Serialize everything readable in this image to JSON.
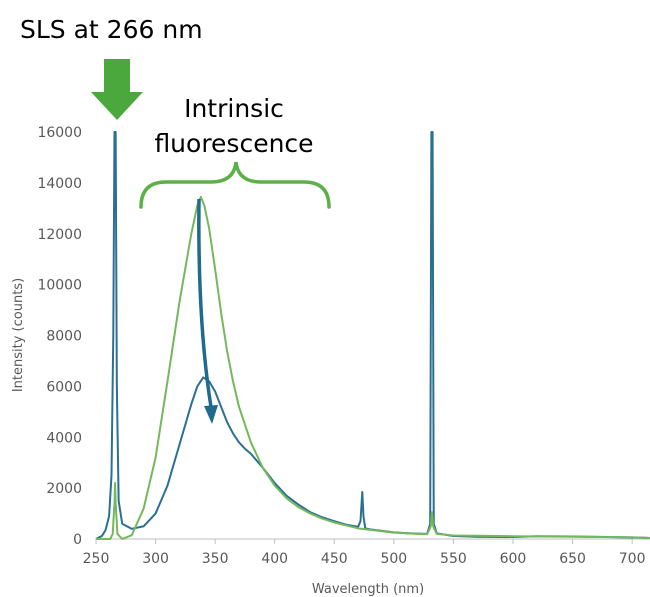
{
  "annotations": {
    "excitation": "SLS at 266 nm",
    "intrinsic_line1": "Intrinsic",
    "intrinsic_line2": "fluorescence"
  },
  "colors": {
    "series_blue": "#2b6f93",
    "series_green": "#74b85c",
    "arrow_green": "#4aa83c",
    "arrow_blue": "#1f6a8e",
    "bracket": "#5cb048",
    "axis": "#bfbfbf",
    "text": "#595959"
  },
  "chart_data": {
    "type": "line",
    "title": "",
    "xlabel": "Wavelength (nm)",
    "ylabel": "Intensity (counts)",
    "xlim": [
      250,
      715
    ],
    "ylim": [
      0,
      16000
    ],
    "xticks": [
      250,
      300,
      350,
      400,
      450,
      500,
      550,
      600,
      650,
      700
    ],
    "yticks": [
      0,
      2000,
      4000,
      6000,
      8000,
      10000,
      12000,
      14000,
      16000
    ],
    "grid": false,
    "legend": "none",
    "series": [
      {
        "color": "#2b6f93",
        "x": [
          250,
          255,
          258,
          261,
          263,
          264.5,
          265.5,
          266,
          266.5,
          267.5,
          269,
          272,
          280,
          290,
          300,
          310,
          320,
          330,
          335,
          340,
          345,
          350,
          355,
          360,
          365,
          370,
          375,
          380,
          390,
          400,
          410,
          420,
          430,
          440,
          450,
          460,
          470,
          472,
          473.5,
          474.5,
          476,
          480,
          490,
          500,
          510,
          520,
          528,
          530.5,
          531.5,
          532,
          532.5,
          533.5,
          536,
          550,
          570,
          600,
          620,
          650,
          680,
          700,
          710,
          715
        ],
        "y": [
          0,
          120,
          350,
          900,
          2500,
          8000,
          16000,
          16000,
          16000,
          6000,
          1500,
          600,
          400,
          500,
          1000,
          2100,
          3700,
          5300,
          6000,
          6350,
          6200,
          5800,
          5200,
          4600,
          4150,
          3800,
          3550,
          3350,
          2800,
          2200,
          1700,
          1350,
          1050,
          850,
          700,
          560,
          480,
          700,
          1850,
          900,
          420,
          380,
          320,
          260,
          230,
          210,
          200,
          600,
          16000,
          16000,
          16000,
          600,
          220,
          120,
          90,
          80,
          110,
          100,
          80,
          60,
          50,
          40
        ]
      },
      {
        "color": "#74b85c",
        "x": [
          250,
          262,
          264,
          265.5,
          266,
          266.5,
          268,
          272,
          280,
          290,
          300,
          310,
          320,
          330,
          335,
          338,
          341,
          345,
          350,
          355,
          360,
          365,
          370,
          380,
          390,
          400,
          410,
          420,
          430,
          440,
          450,
          470,
          500,
          520,
          528,
          531,
          532,
          533,
          536,
          550,
          600,
          650,
          700,
          710,
          715
        ],
        "y": [
          0,
          0,
          200,
          1400,
          2200,
          1400,
          200,
          0,
          150,
          1200,
          3200,
          6200,
          9300,
          12000,
          13100,
          13450,
          13100,
          12200,
          10600,
          8900,
          7400,
          6200,
          5200,
          3800,
          2800,
          2100,
          1600,
          1250,
          1000,
          800,
          650,
          420,
          250,
          200,
          190,
          500,
          1050,
          500,
          200,
          140,
          110,
          90,
          70,
          50,
          40
        ]
      }
    ]
  }
}
